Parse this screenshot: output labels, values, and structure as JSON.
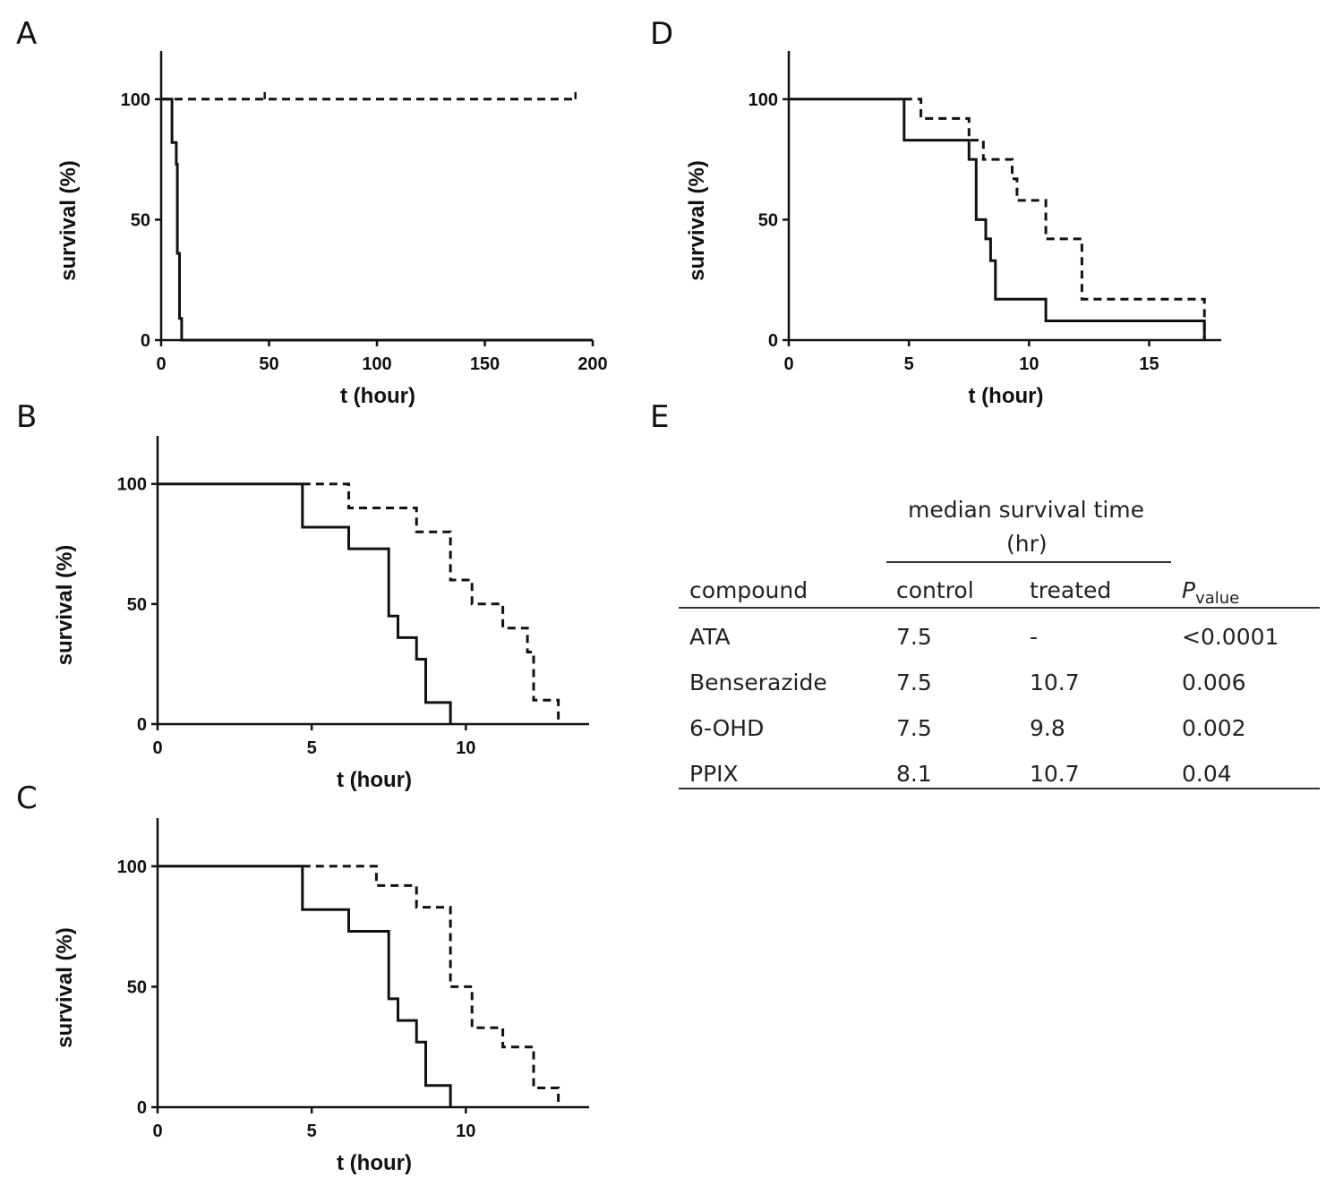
{
  "panel_letters": [
    "A",
    "B",
    "C",
    "D",
    "E"
  ],
  "chart_data": [
    {
      "panel": "A",
      "type": "line",
      "xlabel": "t (hour)",
      "ylabel": "survival (%)",
      "xlim": [
        0,
        200
      ],
      "ylim": [
        0,
        120
      ],
      "xticks": [
        0,
        50,
        100,
        150,
        200
      ],
      "yticks": [
        0,
        50,
        100
      ],
      "series": [
        {
          "style": "solid",
          "steps": [
            [
              0,
              100
            ],
            [
              5,
              100
            ],
            [
              5,
              82
            ],
            [
              7,
              82
            ],
            [
              7,
              73
            ],
            [
              7.5,
              73
            ],
            [
              7.5,
              36
            ],
            [
              8.5,
              36
            ],
            [
              8.5,
              9
            ],
            [
              9.5,
              9
            ],
            [
              9.5,
              0
            ],
            [
              200,
              0
            ]
          ]
        },
        {
          "style": "dashed",
          "steps": [
            [
              0,
              100
            ],
            [
              192,
              100
            ]
          ],
          "censor_marks": [
            [
              48,
              100
            ],
            [
              192,
              100
            ]
          ]
        }
      ]
    },
    {
      "panel": "B",
      "type": "line",
      "xlabel": "t (hour)",
      "ylabel": "survival (%)",
      "xlim": [
        0,
        14
      ],
      "ylim": [
        0,
        120
      ],
      "xticks": [
        0,
        5,
        10
      ],
      "yticks": [
        0,
        50,
        100
      ],
      "series": [
        {
          "style": "solid",
          "steps": [
            [
              0,
              100
            ],
            [
              4.7,
              100
            ],
            [
              4.7,
              82
            ],
            [
              6.2,
              82
            ],
            [
              6.2,
              73
            ],
            [
              7.5,
              73
            ],
            [
              7.5,
              45
            ],
            [
              7.8,
              45
            ],
            [
              7.8,
              36
            ],
            [
              8.4,
              36
            ],
            [
              8.4,
              27
            ],
            [
              8.7,
              27
            ],
            [
              8.7,
              9
            ],
            [
              9.5,
              9
            ],
            [
              9.5,
              0
            ]
          ]
        },
        {
          "style": "dashed",
          "steps": [
            [
              4.7,
              100
            ],
            [
              6.2,
              100
            ],
            [
              6.2,
              90
            ],
            [
              8.4,
              90
            ],
            [
              8.4,
              80
            ],
            [
              9.5,
              80
            ],
            [
              9.5,
              60
            ],
            [
              10.2,
              60
            ],
            [
              10.2,
              50
            ],
            [
              11.2,
              50
            ],
            [
              11.2,
              40
            ],
            [
              12,
              40
            ],
            [
              12,
              30
            ],
            [
              12.2,
              30
            ],
            [
              12.2,
              10
            ],
            [
              13,
              10
            ],
            [
              13,
              0
            ]
          ]
        }
      ]
    },
    {
      "panel": "C",
      "type": "line",
      "xlabel": "t (hour)",
      "ylabel": "survival (%)",
      "xlim": [
        0,
        14
      ],
      "ylim": [
        0,
        120
      ],
      "xticks": [
        0,
        5,
        10
      ],
      "yticks": [
        0,
        50,
        100
      ],
      "series": [
        {
          "style": "solid",
          "steps": [
            [
              0,
              100
            ],
            [
              4.7,
              100
            ],
            [
              4.7,
              82
            ],
            [
              6.2,
              82
            ],
            [
              6.2,
              73
            ],
            [
              7.5,
              73
            ],
            [
              7.5,
              45
            ],
            [
              7.8,
              45
            ],
            [
              7.8,
              36
            ],
            [
              8.4,
              36
            ],
            [
              8.4,
              27
            ],
            [
              8.7,
              27
            ],
            [
              8.7,
              9
            ],
            [
              9.5,
              9
            ],
            [
              9.5,
              0
            ]
          ]
        },
        {
          "style": "dashed",
          "steps": [
            [
              4.7,
              100
            ],
            [
              7.1,
              100
            ],
            [
              7.1,
              92
            ],
            [
              8.4,
              92
            ],
            [
              8.4,
              83
            ],
            [
              9.5,
              83
            ],
            [
              9.5,
              50
            ],
            [
              10.2,
              50
            ],
            [
              10.2,
              33
            ],
            [
              11.2,
              33
            ],
            [
              11.2,
              25
            ],
            [
              12.2,
              25
            ],
            [
              12.2,
              8
            ],
            [
              13,
              8
            ],
            [
              13,
              0
            ]
          ]
        }
      ]
    },
    {
      "panel": "D",
      "type": "line",
      "xlabel": "t (hour)",
      "ylabel": "survival (%)",
      "xlim": [
        0,
        18
      ],
      "ylim": [
        0,
        120
      ],
      "xticks": [
        0,
        5,
        10,
        15
      ],
      "yticks": [
        0,
        50,
        100
      ],
      "series": [
        {
          "style": "solid",
          "steps": [
            [
              0,
              100
            ],
            [
              4.8,
              100
            ],
            [
              4.8,
              83
            ],
            [
              7.5,
              83
            ],
            [
              7.5,
              75
            ],
            [
              7.8,
              75
            ],
            [
              7.8,
              50
            ],
            [
              8.2,
              50
            ],
            [
              8.2,
              42
            ],
            [
              8.4,
              42
            ],
            [
              8.4,
              33
            ],
            [
              8.6,
              33
            ],
            [
              8.6,
              17
            ],
            [
              10.7,
              17
            ],
            [
              10.7,
              8
            ],
            [
              17.3,
              8
            ],
            [
              17.3,
              0
            ]
          ]
        },
        {
          "style": "dashed",
          "steps": [
            [
              4.8,
              100
            ],
            [
              5.5,
              100
            ],
            [
              5.5,
              92
            ],
            [
              7.5,
              92
            ],
            [
              7.5,
              83
            ],
            [
              8.1,
              83
            ],
            [
              8.1,
              75
            ],
            [
              9.3,
              75
            ],
            [
              9.3,
              67
            ],
            [
              9.5,
              67
            ],
            [
              9.5,
              58
            ],
            [
              10.7,
              58
            ],
            [
              10.7,
              42
            ],
            [
              12.2,
              42
            ],
            [
              12.2,
              17
            ],
            [
              17.3,
              17
            ],
            [
              17.3,
              0
            ]
          ]
        }
      ]
    }
  ],
  "table": {
    "group_header_line1": "median survival time",
    "group_header_line2": "(hr)",
    "columns": [
      "compound",
      "control",
      "treated",
      "P",
      "value"
    ],
    "rows": [
      [
        "ATA",
        "7.5",
        "-",
        "<0.0001"
      ],
      [
        "Benserazide",
        "7.5",
        "10.7",
        "0.006"
      ],
      [
        "6-OHD",
        "7.5",
        "9.8",
        "0.002"
      ],
      [
        "PPIX",
        "8.1",
        "10.7",
        "0.04"
      ]
    ]
  }
}
